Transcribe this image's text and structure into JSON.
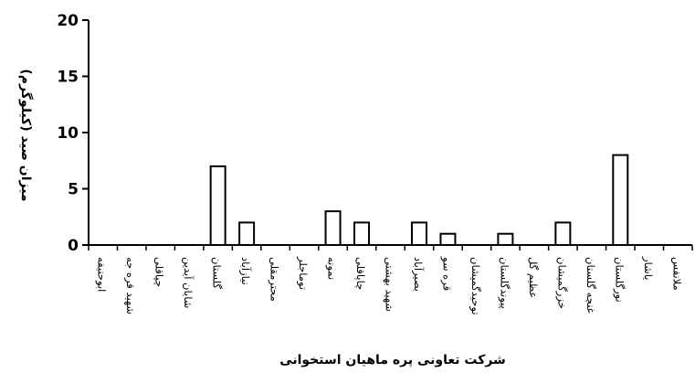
{
  "chart_data": {
    "type": "bar",
    "xlabel": "شرکت تعاونی پره ماهیان استخوانی",
    "ylabel": "میزان صید (کیلوگرم)",
    "ylim": [
      0,
      20
    ],
    "yticks": [
      0,
      5,
      10,
      15,
      20
    ],
    "grid": false,
    "categories": [
      "ابوحنیفه",
      "شهید قره جه",
      "چپاقلی",
      "شایان آیدین",
      "گلستان",
      "نیازآباد",
      "محترمقلی",
      "توماجلر",
      "نمونه",
      "چاپاقلی",
      "شهید بهشتی",
      "بصیرآباد",
      "قره سو",
      "توحیدگمیشان",
      "پیوندگلستان",
      "عظیم گل",
      "خزرگمیشان",
      "غنچه گلستان",
      "نورگلستان",
      "یاشار",
      "ملانفس"
    ],
    "values": [
      0,
      0,
      0,
      0,
      7,
      2,
      0,
      0,
      3,
      2,
      0,
      2,
      1,
      0,
      1,
      0,
      2,
      0,
      8,
      0,
      0
    ]
  }
}
